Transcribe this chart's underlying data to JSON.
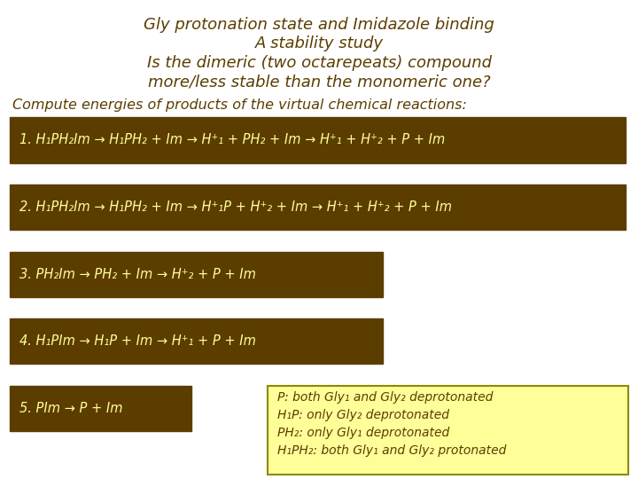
{
  "bg_color": "#ffffff",
  "title_color": "#5c3d00",
  "box_bg_color": "#5c3d00",
  "box_text_color": "#ffff99",
  "note_bg_color": "#ffff99",
  "note_border_color": "#8b8b00",
  "compute_text_color": "#5c3d00",
  "title_lines": [
    "Gly protonation state and Imidazole binding",
    "A stability study",
    "Is the dimeric (two octarepeats) compound\nmore/less stable than the monomeric one?"
  ],
  "compute_line": "Compute energies of products of the virtual chemical reactions:",
  "reactions": [
    "1. H₁PH₂Im → H₁PH₂ + Im → H⁺₁ + PH₂ + Im → H⁺₁ + H⁺₂ + P + Im",
    "2. H₁PH₂Im → H₁PH₂ + Im → H⁺₁P + H⁺₂ + Im → H⁺₁ + H⁺₂ + P + Im",
    "3. PH₂Im → PH₂ + Im → H⁺₂ + P + Im",
    "4. H₁PIm → H₁P + Im → H⁺₁ + P + Im",
    "5. PIm → P + Im"
  ],
  "note_lines": [
    "P: both Gly₁ and Gly₂ deprotonated",
    "H₁P: only Gly₂ deprotonated",
    "PH₂: only Gly₁ deprotonated",
    "H₁PH₂: both Gly₁ and Gly₂ protonated"
  ]
}
